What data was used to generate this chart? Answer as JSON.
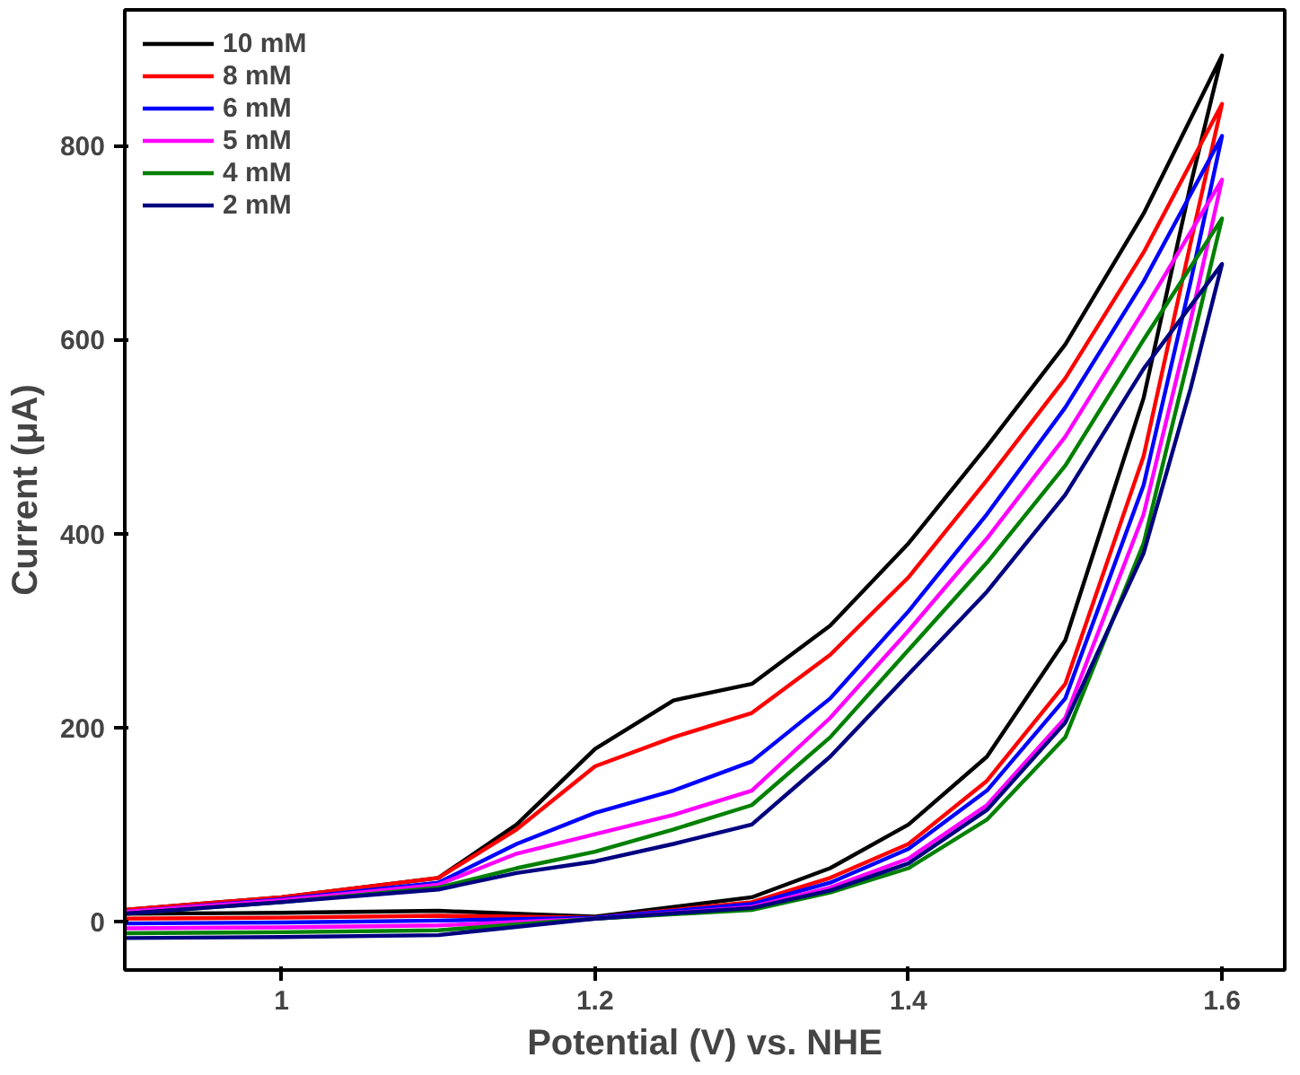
{
  "chart_data": {
    "type": "line",
    "xlabel": "Potential (V) vs. NHE",
    "ylabel": "Current (μA)",
    "xlim": [
      0.9,
      1.64
    ],
    "ylim": [
      -50,
      940
    ],
    "xticks": [
      1.0,
      1.2,
      1.4,
      1.6
    ],
    "yticks": [
      0,
      200,
      400,
      600,
      800
    ],
    "grid": false,
    "legend": "top left",
    "marker": "none",
    "line_style": "solid",
    "series": [
      {
        "name": "10 mM",
        "color": "#000000",
        "x": [
          0.9,
          1.0,
          1.1,
          1.2,
          1.3,
          1.35,
          1.4,
          1.45,
          1.5,
          1.55,
          1.58,
          1.6,
          1.55,
          1.5,
          1.45,
          1.4,
          1.35,
          1.3,
          1.25,
          1.2,
          1.15,
          1.1,
          1.0,
          0.9
        ],
        "values": [
          8,
          9,
          11,
          5,
          25,
          55,
          100,
          170,
          290,
          540,
          760,
          893,
          730,
          595,
          490,
          390,
          305,
          245,
          228,
          178,
          100,
          45,
          25,
          12
        ]
      },
      {
        "name": "8 mM",
        "color": "#ff0000",
        "x": [
          0.9,
          1.0,
          1.1,
          1.2,
          1.3,
          1.35,
          1.4,
          1.45,
          1.5,
          1.55,
          1.58,
          1.6,
          1.55,
          1.5,
          1.45,
          1.4,
          1.35,
          1.3,
          1.25,
          1.2,
          1.15,
          1.1,
          1.0,
          0.9
        ],
        "values": [
          3,
          4,
          6,
          4,
          20,
          45,
          80,
          145,
          245,
          480,
          700,
          843,
          690,
          560,
          455,
          355,
          275,
          215,
          190,
          160,
          95,
          45,
          25,
          12
        ]
      },
      {
        "name": "6 mM",
        "color": "#0000ff",
        "x": [
          0.9,
          1.0,
          1.1,
          1.2,
          1.3,
          1.35,
          1.4,
          1.45,
          1.5,
          1.55,
          1.58,
          1.6,
          1.55,
          1.5,
          1.45,
          1.4,
          1.35,
          1.3,
          1.25,
          1.2,
          1.15,
          1.1,
          1.0,
          0.9
        ],
        "values": [
          -2,
          -1,
          1,
          4,
          18,
          40,
          75,
          135,
          230,
          450,
          660,
          810,
          660,
          530,
          420,
          320,
          230,
          165,
          135,
          112,
          80,
          40,
          23,
          10
        ]
      },
      {
        "name": "5 mM",
        "color": "#ff00ff",
        "x": [
          0.9,
          1.0,
          1.1,
          1.2,
          1.3,
          1.35,
          1.4,
          1.45,
          1.5,
          1.55,
          1.58,
          1.6,
          1.55,
          1.5,
          1.45,
          1.4,
          1.35,
          1.3,
          1.25,
          1.2,
          1.15,
          1.1,
          1.0,
          0.9
        ],
        "values": [
          -7,
          -6,
          -4,
          3,
          15,
          35,
          65,
          120,
          210,
          420,
          620,
          765,
          630,
          500,
          395,
          300,
          210,
          135,
          110,
          90,
          70,
          38,
          22,
          10
        ]
      },
      {
        "name": "4 mM",
        "color": "#008000",
        "x": [
          0.9,
          1.0,
          1.1,
          1.2,
          1.3,
          1.35,
          1.4,
          1.45,
          1.5,
          1.55,
          1.58,
          1.6,
          1.55,
          1.5,
          1.45,
          1.4,
          1.35,
          1.3,
          1.25,
          1.2,
          1.15,
          1.1,
          1.0,
          0.9
        ],
        "values": [
          -12,
          -11,
          -9,
          3,
          12,
          30,
          55,
          105,
          190,
          390,
          590,
          725,
          600,
          470,
          370,
          280,
          190,
          120,
          95,
          72,
          55,
          35,
          20,
          8
        ]
      },
      {
        "name": "2 mM",
        "color": "#000080",
        "x": [
          0.9,
          1.0,
          1.1,
          1.2,
          1.3,
          1.35,
          1.4,
          1.45,
          1.5,
          1.55,
          1.58,
          1.6,
          1.55,
          1.5,
          1.45,
          1.4,
          1.35,
          1.3,
          1.25,
          1.2,
          1.15,
          1.1,
          1.0,
          0.9
        ],
        "values": [
          -17,
          -16,
          -14,
          3,
          14,
          32,
          60,
          115,
          205,
          380,
          550,
          678,
          570,
          440,
          340,
          255,
          170,
          100,
          80,
          62,
          50,
          33,
          20,
          8
        ]
      }
    ]
  }
}
